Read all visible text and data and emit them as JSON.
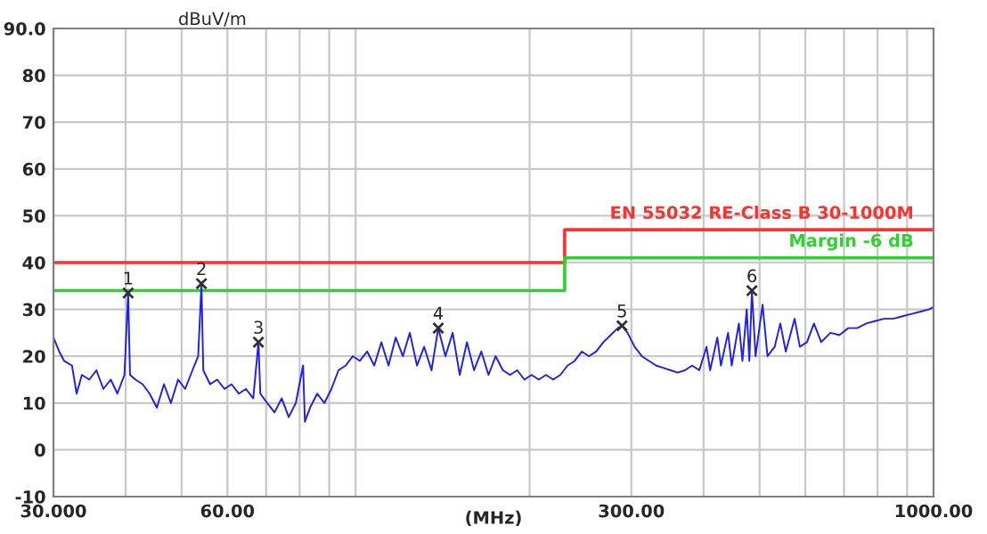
{
  "chart_data": {
    "type": "line",
    "ylabel": "dBuV/m",
    "xlabel": "(MHz)",
    "log": "x",
    "xlim": [
      30,
      1000
    ],
    "ylim": [
      -10,
      90
    ],
    "xticks": [
      {
        "value": 30,
        "label": "30.000"
      },
      {
        "value": 40,
        "label": null
      },
      {
        "value": 50,
        "label": null
      },
      {
        "value": 60,
        "label": "60.00"
      },
      {
        "value": 70,
        "label": null
      },
      {
        "value": 80,
        "label": null
      },
      {
        "value": 90,
        "label": null
      },
      {
        "value": 100,
        "label": null
      },
      {
        "value": 200,
        "label": null
      },
      {
        "value": 300,
        "label": "300.00"
      },
      {
        "value": 400,
        "label": null
      },
      {
        "value": 500,
        "label": null
      },
      {
        "value": 600,
        "label": null
      },
      {
        "value": 700,
        "label": null
      },
      {
        "value": 800,
        "label": null
      },
      {
        "value": 900,
        "label": null
      },
      {
        "value": 1000,
        "label": "1000.00"
      }
    ],
    "yticks": [
      -10,
      0,
      10,
      20,
      30,
      40,
      50,
      60,
      70,
      80,
      {
        "value": 90,
        "label": "90.0"
      }
    ],
    "grid": true,
    "legend": false,
    "series": [
      {
        "name": "EN 55032 RE-Class B 30-1000M",
        "color": "#ff3030",
        "type": "step",
        "x": [
          30,
          230,
          1000
        ],
        "values": [
          40,
          47,
          47
        ]
      },
      {
        "name": "Margin -6 dB",
        "color": "#30d030",
        "type": "step",
        "x": [
          30,
          230,
          1000
        ],
        "values": [
          34,
          41,
          41
        ]
      },
      {
        "color": "#2020e8",
        "x": [
          30,
          30.7,
          31.3,
          32.3,
          32.9,
          33.6,
          34.6,
          35.6,
          36.6,
          37.7,
          38.7,
          39.8,
          40.4,
          40.7,
          41.6,
          42.8,
          44.0,
          45.3,
          46.6,
          47.9,
          49.3,
          50.7,
          52.2,
          53.4,
          54.1,
          54.5,
          56.0,
          57.6,
          59.3,
          61.0,
          62.8,
          64.6,
          66.5,
          67.9,
          68.4,
          70.3,
          72.4,
          74.5,
          76.6,
          78.8,
          81.1,
          81.7,
          83.4,
          85.8,
          88.3,
          90.8,
          93.4,
          96.1,
          98.9,
          101.7,
          104.7,
          107.7,
          110.8,
          114,
          117.3,
          120.7,
          124.1,
          127.7,
          131.4,
          135.3,
          139,
          143,
          147.2,
          151.4,
          155.8,
          160.3,
          165,
          169.8,
          174.7,
          179.8,
          185,
          190.4,
          195.9,
          201.6,
          207.5,
          213.5,
          219.7,
          226,
          232.6,
          239.4,
          246.3,
          253.4,
          260.8,
          268.4,
          276.2,
          284.2,
          289,
          295.4,
          303.9,
          312.8,
          321.8,
          331.2,
          340.8,
          350.7,
          360.9,
          371.4,
          382.2,
          393.3,
          404.7,
          410.6,
          422.5,
          428.6,
          441,
          447.4,
          460.4,
          467,
          475,
          480,
          485,
          492,
          506,
          516,
          531,
          543,
          555,
          575,
          587,
          604,
          621,
          639,
          663,
          687,
          712,
          738,
          765,
          792,
          821,
          851,
          882,
          914,
          948,
          982,
          1000
        ],
        "values": [
          24,
          21,
          19,
          18,
          12,
          16,
          15,
          17,
          13,
          15,
          12,
          16,
          33.5,
          16,
          15,
          14,
          12,
          9,
          14,
          10,
          15,
          13,
          17,
          20,
          35.5,
          17,
          14,
          15,
          13,
          14,
          12,
          13,
          11,
          23,
          12,
          10,
          8,
          11,
          7,
          10,
          18,
          6,
          9,
          12,
          10,
          13,
          17,
          18,
          20,
          19,
          21,
          18,
          23,
          18,
          24,
          20,
          25,
          18,
          22,
          17,
          26,
          20,
          25,
          16,
          23,
          17,
          21,
          16,
          20,
          17,
          16,
          17,
          15,
          16,
          15,
          16,
          15,
          16,
          18,
          19,
          21,
          20,
          21,
          23,
          24.5,
          26,
          26.5,
          25,
          22,
          20,
          19,
          18,
          17.5,
          17,
          16.5,
          17,
          18,
          17,
          22,
          17,
          24,
          18,
          25,
          18,
          27,
          19,
          30,
          19,
          34,
          20,
          31,
          20,
          22,
          27,
          21,
          28,
          22,
          23,
          27,
          23,
          25,
          24.5,
          26,
          26,
          27,
          27.5,
          28,
          28,
          28.5,
          29,
          29.5,
          30,
          30.5
        ]
      }
    ],
    "annotations": [
      {
        "text": "1",
        "x": 40.4,
        "y": 33.5
      },
      {
        "text": "2",
        "x": 54.1,
        "y": 35.5
      },
      {
        "text": "3",
        "x": 67.9,
        "y": 23
      },
      {
        "text": "4",
        "x": 139,
        "y": 26
      },
      {
        "text": "5",
        "x": 289,
        "y": 26.5
      },
      {
        "text": "6",
        "x": 485,
        "y": 34
      }
    ]
  }
}
